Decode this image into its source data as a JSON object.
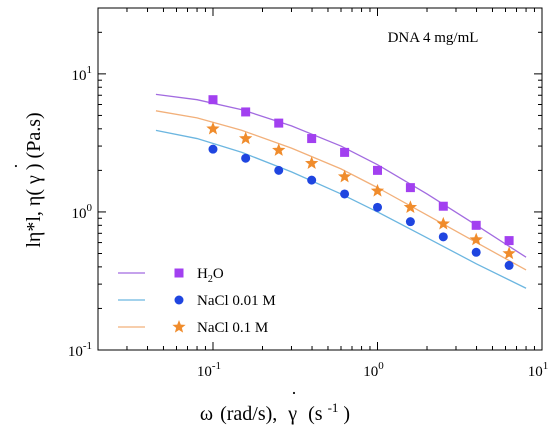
{
  "chart_data": {
    "type": "scatter",
    "annotation": "DNA 4 mg/mL",
    "xlabel": {
      "omega": "ω",
      "omega_units": "(rad/s),",
      "gammadot": "γ",
      "gammadot_dot": "·",
      "units_open": "(s",
      "units_exp": "-1",
      "units_close": ")"
    },
    "ylabel": {
      "part1": "lη*l, η(",
      "gammadot": "γ",
      "gammadot_dot": "·",
      "part2": ") (Pa.s)"
    },
    "x_scale": "log",
    "y_scale": "log",
    "xlim": [
      0.02,
      10
    ],
    "ylim": [
      0.1,
      30
    ],
    "x_ticks": [
      {
        "value": 0.1,
        "base": "10",
        "exp": "-1"
      },
      {
        "value": 1,
        "base": "10",
        "exp": "0"
      },
      {
        "value": 10,
        "base": "10",
        "exp": "1"
      }
    ],
    "y_ticks": [
      {
        "value": 0.1,
        "base": "10",
        "exp": "-1"
      },
      {
        "value": 1,
        "base": "10",
        "exp": "0"
      },
      {
        "value": 10,
        "base": "10",
        "exp": "1"
      }
    ],
    "legend_position": "bottom-left",
    "series": [
      {
        "name_main": "H",
        "name_sub": "2",
        "name_tail": "O",
        "marker": "square",
        "marker_color": "#a240f0",
        "line_color": "#a26be0",
        "x": [
          0.1,
          0.158,
          0.251,
          0.398,
          0.631,
          1.0,
          1.585,
          2.512,
          3.981,
          6.31
        ],
        "y": [
          6.5,
          5.3,
          4.4,
          3.4,
          2.7,
          2.0,
          1.5,
          1.1,
          0.8,
          0.62
        ],
        "fit_x": [
          0.045,
          0.08,
          0.15,
          0.3,
          0.6,
          1.0,
          2.0,
          4.0,
          8.0
        ],
        "fit_y": [
          7.1,
          6.5,
          5.5,
          4.2,
          3.0,
          2.2,
          1.35,
          0.8,
          0.47
        ]
      },
      {
        "name_main": "NaCl 0.01 M",
        "name_sub": "",
        "name_tail": "",
        "marker": "circle",
        "marker_color": "#1f45e0",
        "line_color": "#6cb6e0",
        "x": [
          0.1,
          0.158,
          0.251,
          0.398,
          0.631,
          1.0,
          1.585,
          2.512,
          3.981,
          6.31
        ],
        "y": [
          2.85,
          2.45,
          2.0,
          1.7,
          1.35,
          1.08,
          0.85,
          0.66,
          0.51,
          0.41
        ],
        "fit_x": [
          0.045,
          0.08,
          0.15,
          0.3,
          0.6,
          1.0,
          2.0,
          4.0,
          8.0
        ],
        "fit_y": [
          3.9,
          3.4,
          2.7,
          1.95,
          1.35,
          1.0,
          0.65,
          0.42,
          0.28
        ]
      },
      {
        "name_main": "NaCl 0.1 M",
        "name_sub": "",
        "name_tail": "",
        "marker": "star",
        "marker_color": "#f08c2c",
        "line_color": "#f2b07a",
        "x": [
          0.1,
          0.158,
          0.251,
          0.398,
          0.631,
          1.0,
          1.585,
          2.512,
          3.981,
          6.31
        ],
        "y": [
          4.0,
          3.4,
          2.8,
          2.25,
          1.8,
          1.42,
          1.08,
          0.82,
          0.63,
          0.5
        ],
        "fit_x": [
          0.045,
          0.08,
          0.15,
          0.3,
          0.6,
          1.0,
          2.0,
          4.0,
          8.0
        ],
        "fit_y": [
          5.4,
          4.8,
          3.9,
          2.9,
          2.05,
          1.5,
          0.95,
          0.6,
          0.38
        ]
      }
    ]
  }
}
